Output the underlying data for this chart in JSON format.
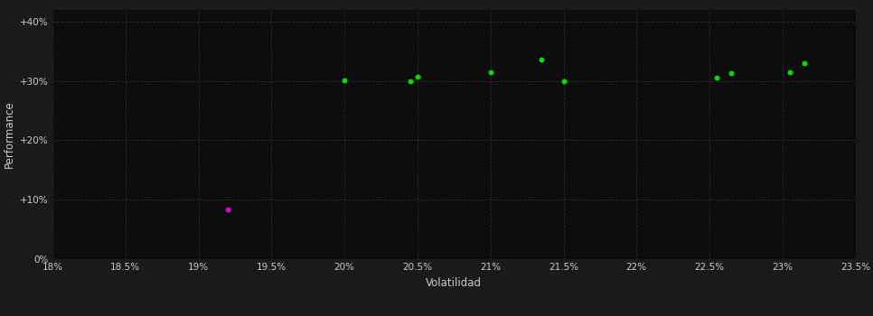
{
  "background_color": "#1a1a1a",
  "plot_bg_color": "#0d0d0d",
  "grid_color": "#2a2a2a",
  "text_color": "#cccccc",
  "xlabel": "Volatilidad",
  "ylabel": "Performance",
  "xlim": [
    0.18,
    0.235
  ],
  "ylim": [
    0.0,
    0.42
  ],
  "xticks": [
    0.18,
    0.185,
    0.19,
    0.195,
    0.2,
    0.205,
    0.21,
    0.215,
    0.22,
    0.225,
    0.23,
    0.235
  ],
  "yticks": [
    0.0,
    0.1,
    0.2,
    0.3,
    0.4
  ],
  "green_points": [
    [
      0.2,
      0.301
    ],
    [
      0.2045,
      0.3
    ],
    [
      0.205,
      0.307
    ],
    [
      0.21,
      0.315
    ],
    [
      0.2135,
      0.336
    ],
    [
      0.215,
      0.299
    ],
    [
      0.2255,
      0.305
    ],
    [
      0.2265,
      0.313
    ],
    [
      0.2305,
      0.315
    ],
    [
      0.2315,
      0.33
    ]
  ],
  "magenta_points": [
    [
      0.192,
      0.083
    ]
  ],
  "green_color": "#00dd00",
  "magenta_color": "#dd00dd",
  "dot_size": 18,
  "font_size_ticks": 7.5,
  "font_size_labels": 8.5
}
